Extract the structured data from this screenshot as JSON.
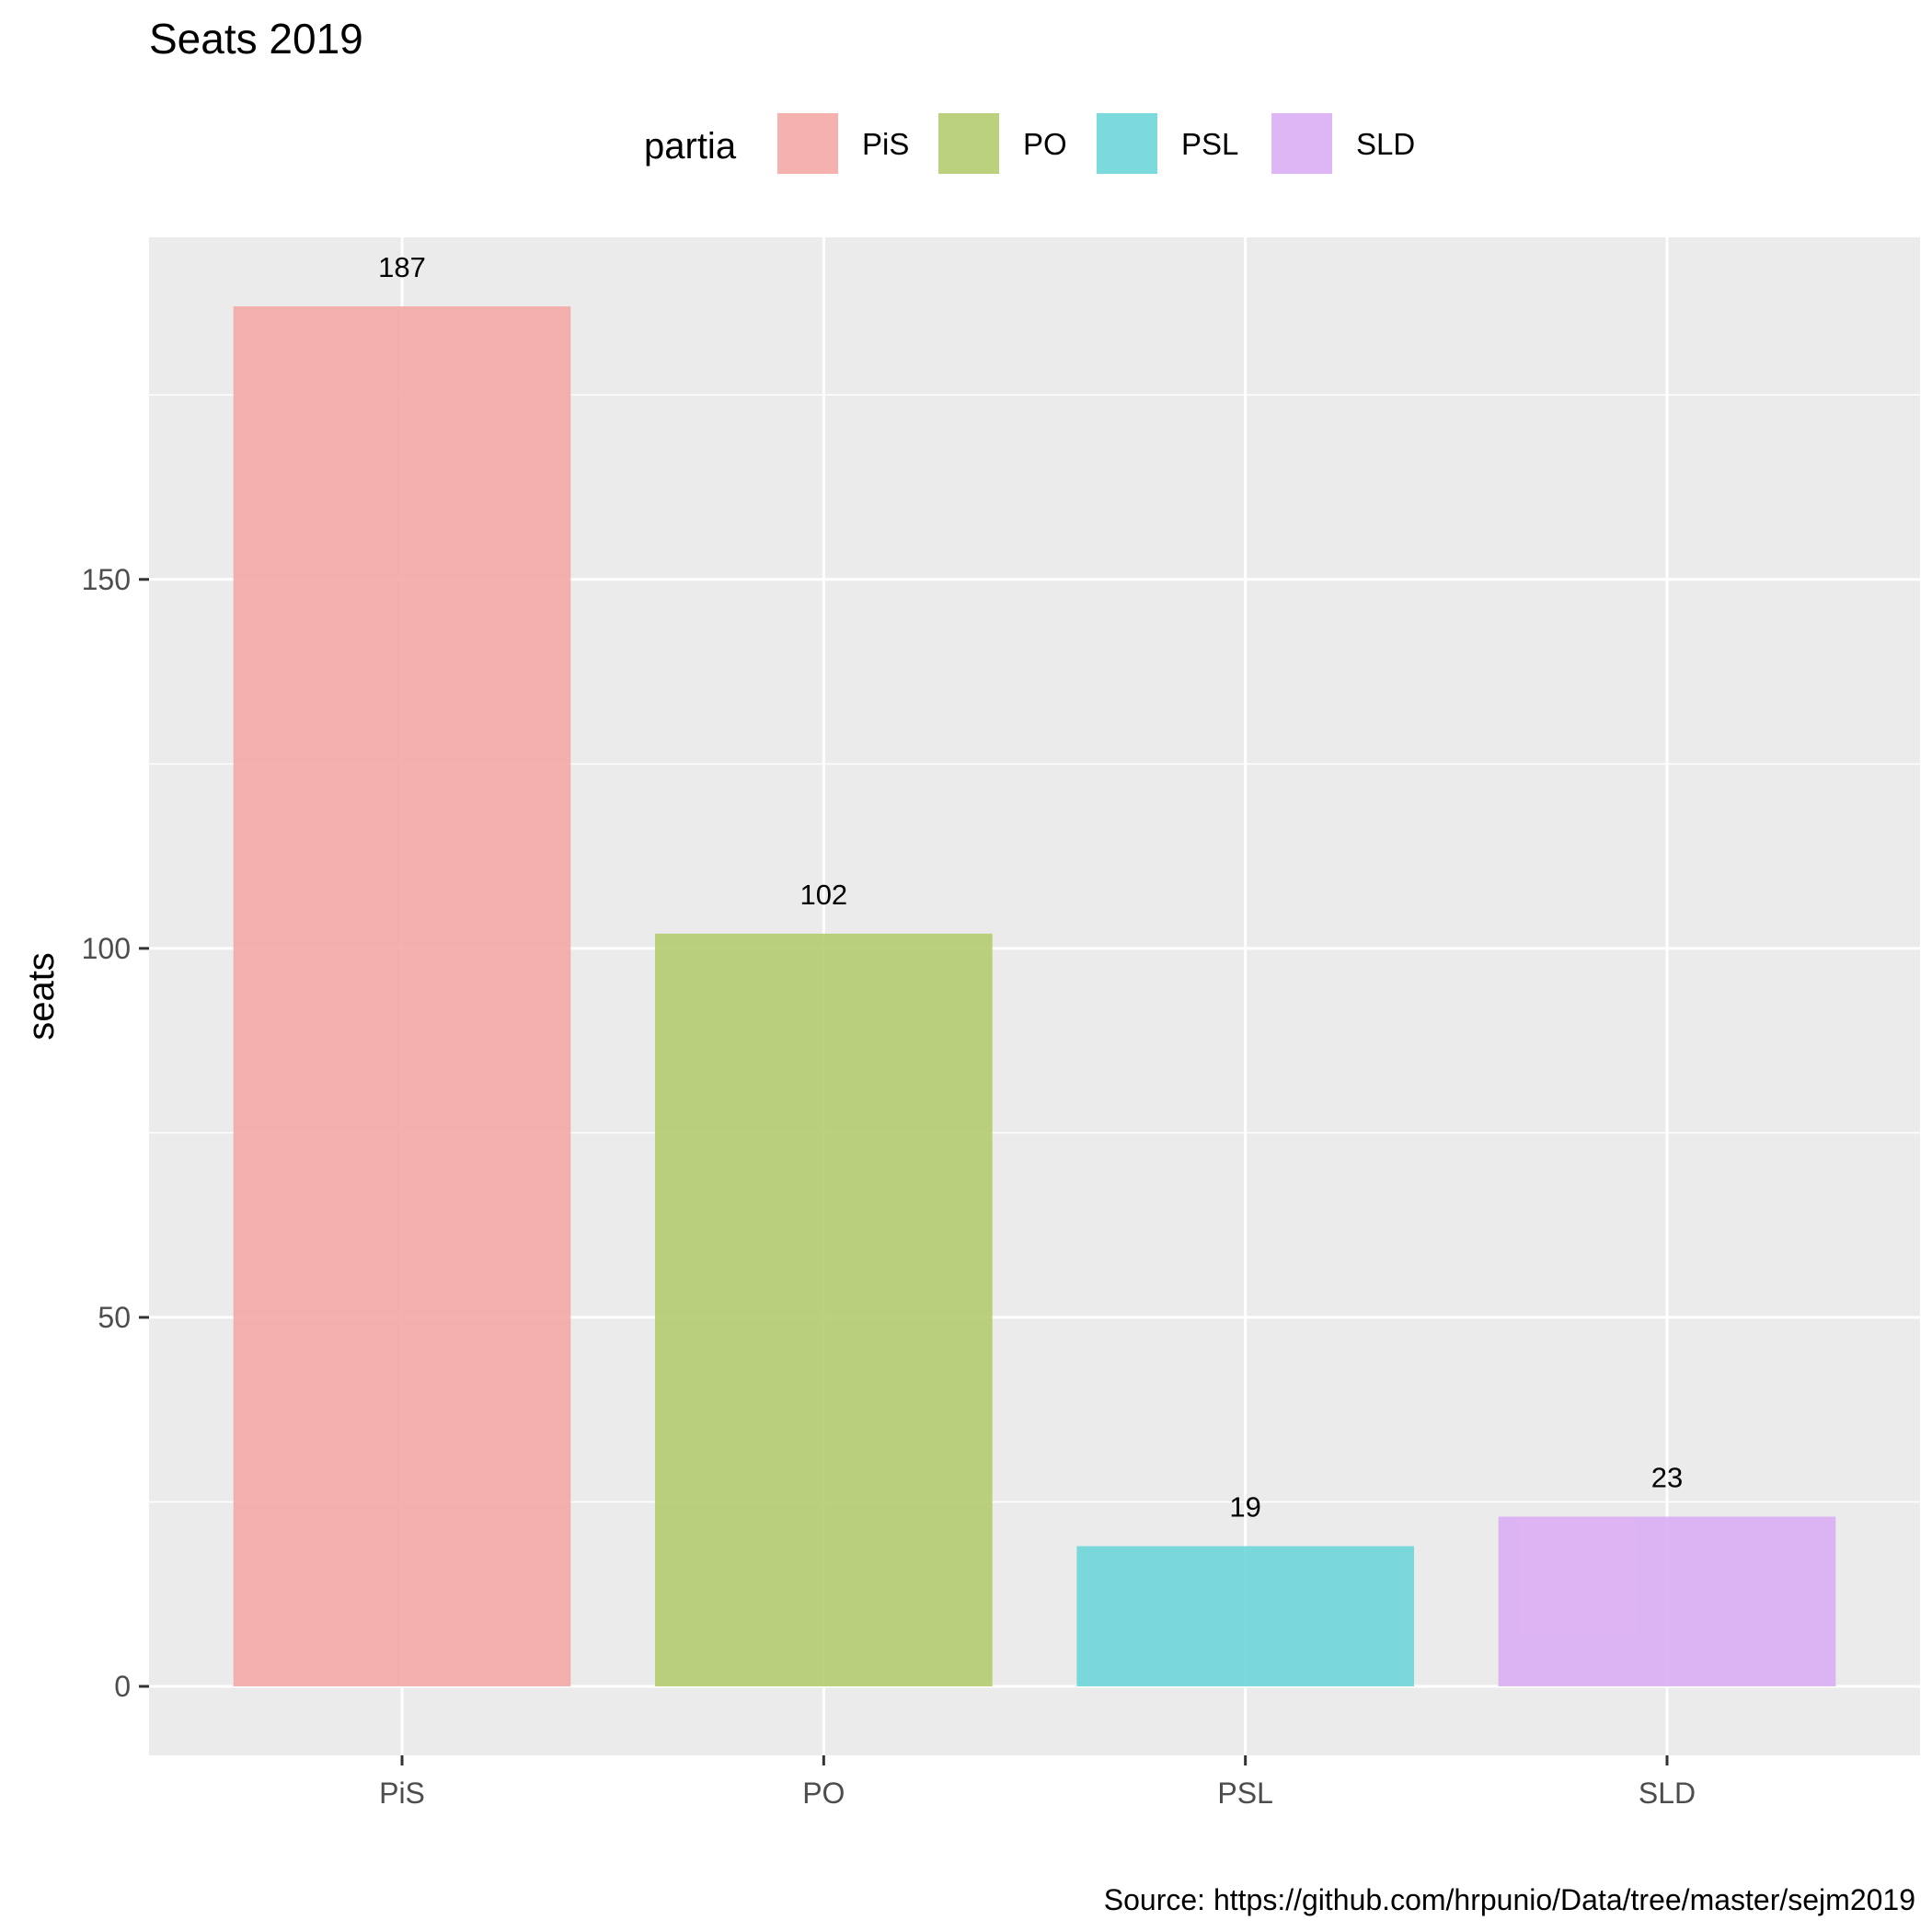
{
  "chart_data": {
    "type": "bar",
    "title": "Seats 2019",
    "xlabel": "",
    "ylabel": "seats",
    "categories": [
      "PiS",
      "PO",
      "PSL",
      "SLD"
    ],
    "values": [
      187,
      102,
      19,
      23
    ],
    "data_labels": [
      "187",
      "102",
      "19",
      "23"
    ],
    "yticks": [
      0,
      50,
      100,
      150
    ],
    "ylim": [
      -9.35,
      196.35
    ],
    "grid": true,
    "legend": {
      "title": "partia",
      "placement": "top",
      "entries": [
        "PiS",
        "PO",
        "PSL",
        "SLD"
      ]
    },
    "colors": [
      "#f4a8a4",
      "#b4cc6f",
      "#6ed6d8",
      "#dcaef4"
    ],
    "panel_background": "#ebebeb",
    "caption": "Source: https://github.com/hrpunio/Data/tree/master/sejm2019"
  }
}
